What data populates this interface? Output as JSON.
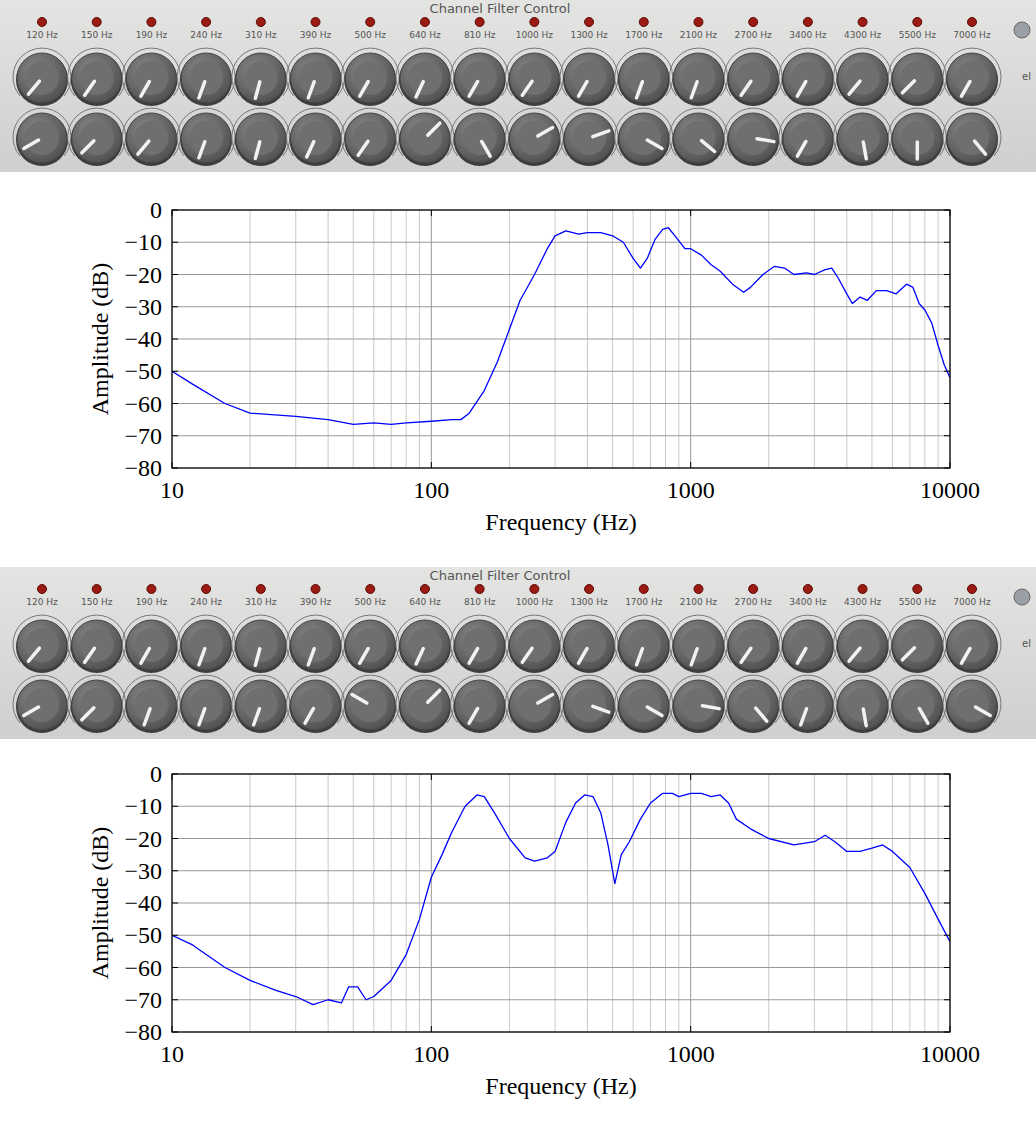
{
  "panels": [
    {
      "title": "Channel Filter Control",
      "side_label": "el",
      "channels": [
        "120 Hz",
        "150 Hz",
        "190 Hz",
        "240 Hz",
        "310 Hz",
        "390 Hz",
        "500 Hz",
        "640 Hz",
        "810 Hz",
        "1000 Hz",
        "1300 Hz",
        "1700 Hz",
        "2100 Hz",
        "2700 Hz",
        "3400 Hz",
        "4300 Hz",
        "5500 Hz",
        "7000 Hz"
      ],
      "top_knobs": [
        220,
        215,
        210,
        200,
        195,
        200,
        210,
        205,
        210,
        215,
        210,
        200,
        200,
        215,
        210,
        220,
        225,
        210
      ],
      "bottom_knobs": [
        240,
        225,
        220,
        200,
        195,
        205,
        215,
        45,
        150,
        60,
        70,
        120,
        130,
        100,
        210,
        170,
        180,
        140
      ]
    },
    {
      "title": "Channel Filter Control",
      "side_label": "el",
      "channels": [
        "120 Hz",
        "150 Hz",
        "190 Hz",
        "240 Hz",
        "310 Hz",
        "390 Hz",
        "500 Hz",
        "640 Hz",
        "810 Hz",
        "1000 Hz",
        "1300 Hz",
        "1700 Hz",
        "2100 Hz",
        "2700 Hz",
        "3400 Hz",
        "4300 Hz",
        "5500 Hz",
        "7000 Hz"
      ],
      "top_knobs": [
        220,
        215,
        210,
        200,
        195,
        200,
        210,
        205,
        210,
        215,
        210,
        200,
        200,
        215,
        210,
        220,
        225,
        210
      ],
      "bottom_knobs": [
        240,
        225,
        200,
        200,
        200,
        210,
        300,
        45,
        210,
        60,
        110,
        120,
        100,
        140,
        200,
        170,
        150,
        120
      ]
    }
  ],
  "chart_data": [
    {
      "type": "line",
      "xlabel": "Frequency (Hz)",
      "ylabel": "Amplitude (dB)",
      "log": "x",
      "grid": true,
      "xlim": [
        10,
        10000
      ],
      "ylim": [
        -80,
        0
      ],
      "xticks": [
        10,
        100,
        1000,
        10000
      ],
      "yticks": [
        0,
        {
          "value": -10,
          "label": "−10"
        },
        {
          "value": -20,
          "label": "−20"
        },
        {
          "value": -30,
          "label": "−30"
        },
        {
          "value": -40,
          "label": "−40"
        },
        {
          "value": -50,
          "label": "−50"
        },
        {
          "value": -60,
          "label": "−60"
        },
        {
          "value": -70,
          "label": "−70"
        },
        {
          "value": -80,
          "label": "−80"
        }
      ],
      "x": [
        10,
        12,
        16,
        20,
        30,
        40,
        50,
        60,
        70,
        80,
        100,
        120,
        130,
        140,
        160,
        180,
        200,
        220,
        250,
        280,
        300,
        330,
        370,
        400,
        450,
        500,
        550,
        600,
        640,
        680,
        730,
        780,
        820,
        870,
        950,
        1000,
        1100,
        1200,
        1300,
        1450,
        1600,
        1700,
        1900,
        2100,
        2300,
        2500,
        2800,
        3000,
        3300,
        3500,
        3700,
        4000,
        4200,
        4500,
        4800,
        5200,
        5700,
        6200,
        6800,
        7200,
        7600,
        8000,
        8500,
        9000,
        9500,
        10000
      ],
      "series": [
        {
          "color": "#0000ff",
          "values": [
            -50,
            -54,
            -60,
            -63,
            -64,
            -65,
            -66.5,
            -66,
            -66.5,
            -66,
            -65.5,
            -65,
            -65,
            -63,
            -56,
            -47,
            -37,
            -28,
            -20,
            -12,
            -8,
            -6.5,
            -7.5,
            -7,
            -7,
            -8,
            -10,
            -15,
            -18,
            -15,
            -9,
            -6,
            -5.5,
            -8,
            -12,
            -12,
            -14,
            -17,
            -19,
            -23,
            -25.5,
            -24,
            -20,
            -17.5,
            -18,
            -20,
            -19.5,
            -20,
            -18.5,
            -18,
            -21,
            -26,
            -29,
            -27,
            -28,
            -25,
            -25,
            -26,
            -23,
            -24,
            -29,
            -31,
            -35,
            -42,
            -48,
            -52
          ]
        }
      ]
    },
    {
      "type": "line",
      "xlabel": "Frequency (Hz)",
      "ylabel": "Amplitude (dB)",
      "log": "x",
      "grid": true,
      "xlim": [
        10,
        10000
      ],
      "ylim": [
        -80,
        0
      ],
      "xticks": [
        10,
        100,
        1000,
        10000
      ],
      "yticks": [
        0,
        {
          "value": -10,
          "label": "−10"
        },
        {
          "value": -20,
          "label": "−20"
        },
        {
          "value": -30,
          "label": "−30"
        },
        {
          "value": -40,
          "label": "−40"
        },
        {
          "value": -50,
          "label": "−50"
        },
        {
          "value": -60,
          "label": "−60"
        },
        {
          "value": -70,
          "label": "−70"
        },
        {
          "value": -80,
          "label": "−80"
        }
      ],
      "x": [
        10,
        12,
        16,
        20,
        25,
        30,
        35,
        40,
        45,
        48,
        52,
        56,
        60,
        70,
        80,
        90,
        100,
        110,
        120,
        135,
        150,
        160,
        175,
        200,
        230,
        250,
        280,
        300,
        330,
        360,
        390,
        420,
        450,
        480,
        510,
        540,
        580,
        640,
        700,
        780,
        850,
        900,
        1000,
        1100,
        1200,
        1300,
        1400,
        1500,
        1700,
        2000,
        2500,
        3000,
        3300,
        3600,
        4000,
        4500,
        5000,
        5500,
        6000,
        7000,
        8000,
        9000,
        10000
      ],
      "series": [
        {
          "color": "#0000ff",
          "values": [
            -50,
            -53,
            -60,
            -64,
            -67,
            -69,
            -71.5,
            -70,
            -71,
            -66,
            -66,
            -70,
            -69,
            -64,
            -56,
            -45,
            -32,
            -25,
            -18,
            -10,
            -6.5,
            -7,
            -12,
            -20,
            -26,
            -27,
            -26,
            -24,
            -15,
            -9,
            -6.5,
            -7,
            -12,
            -22,
            -34,
            -25,
            -21,
            -14,
            -9,
            -6,
            -6,
            -7,
            -6,
            -6,
            -7,
            -6.5,
            -9,
            -14,
            -17,
            -20,
            -22,
            -21,
            -19,
            -21,
            -24,
            -24,
            -23,
            -22,
            -24,
            -29,
            -37,
            -45,
            -52
          ]
        }
      ]
    }
  ]
}
